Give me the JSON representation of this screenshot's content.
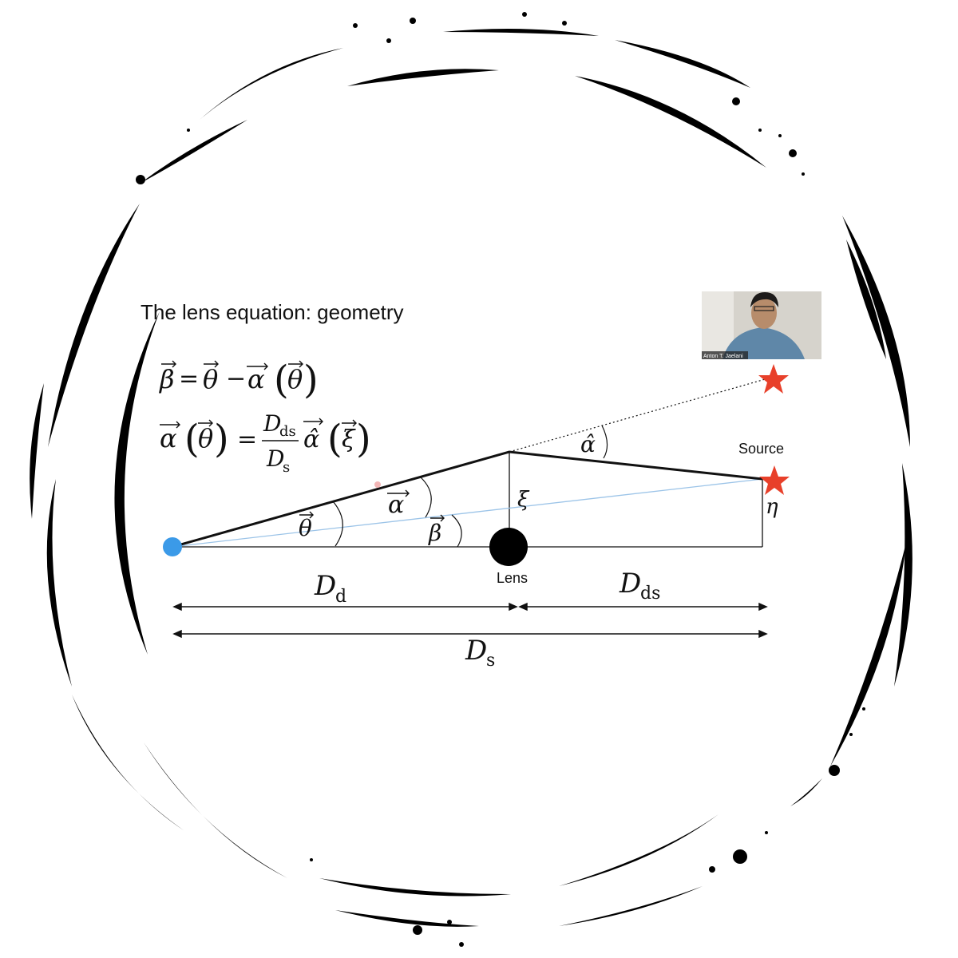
{
  "slide": {
    "title": "The lens equation: geometry"
  },
  "equations": {
    "eq1": {
      "beta": "β",
      "equals": "=",
      "theta": "θ",
      "minus": "−",
      "alpha": "α",
      "paren_open": "(",
      "paren_close": ")"
    },
    "eq2": {
      "alpha": "α",
      "theta": "θ",
      "equals": "=",
      "numerator_D": "D",
      "numerator_sub": "ds",
      "denominator_D": "D",
      "denominator_sub": "s",
      "alpha_hat": "α̂",
      "xi": "ξ",
      "paren_open": "(",
      "paren_close": ")"
    }
  },
  "diagram": {
    "source_label": "Source",
    "lens_label": "Lens",
    "xi_label": "ξ",
    "eta_label": "η",
    "alpha_hat_label": "α̂",
    "alpha_vec_label": "α",
    "theta_vec_label": "θ",
    "beta_vec_label": "β",
    "Dd": {
      "main": "D",
      "sub": "d"
    },
    "Dds": {
      "main": "D",
      "sub": "ds"
    },
    "Ds": {
      "main": "D",
      "sub": "s"
    },
    "observer_color": "#3b9ae8",
    "star_color": "#e8402a",
    "ray_color": "#9cc4e8"
  },
  "webcam": {
    "name": "Anton T. Jaelani"
  }
}
